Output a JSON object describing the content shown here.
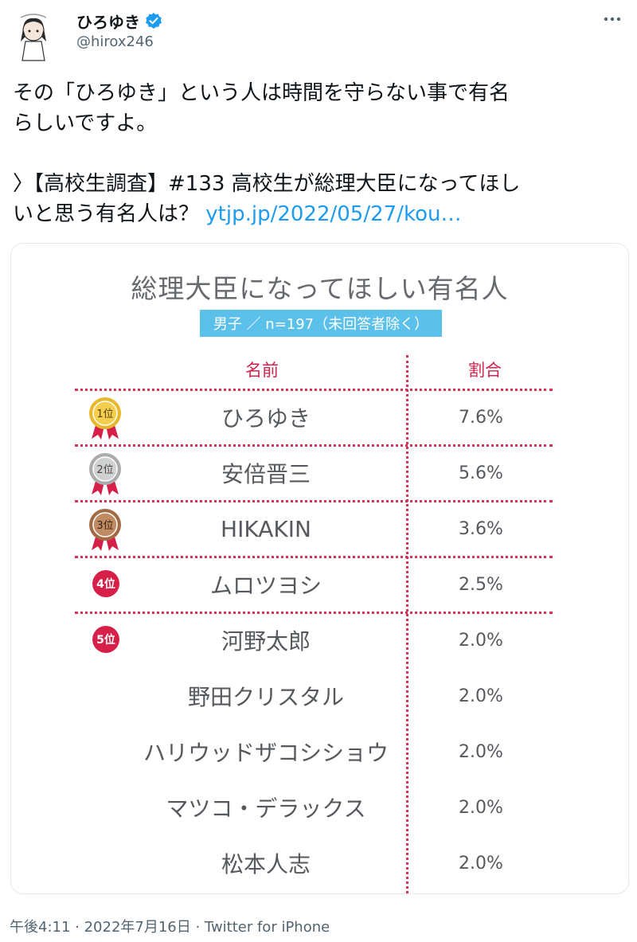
{
  "user": {
    "display_name": "ひろゆき",
    "handle": "@hirox246",
    "avatar_icon": "illustrated-avatar",
    "verified_icon": "verified-badge-icon"
  },
  "tweet": {
    "line1": "その「ひろゆき」という人は時間を守らない事で有名",
    "line2": "らしいですよ。",
    "line3": "〉【高校生調査】#133 高校生が総理大臣になってほし",
    "line4_prefix": "いと思う有名人は？ ",
    "link": "ytjp.jp/2022/05/27/kou…"
  },
  "card": {
    "title": "総理大臣になってほしい有名人",
    "subtitle": "男子 ／ n=197（未回答者除く）",
    "col_name": "名前",
    "col_rate": "割合",
    "rows": [
      {
        "rank_label": "1位",
        "name": "ひろゆき",
        "value": "7.6%"
      },
      {
        "rank_label": "2位",
        "name": "安倍晋三",
        "value": "5.6%"
      },
      {
        "rank_label": "3位",
        "name": "HIKAKIN",
        "value": "3.6%"
      },
      {
        "rank_label": "4位",
        "name": "ムロツヨシ",
        "value": "2.5%"
      },
      {
        "rank_label": "5位",
        "name": "河野太郎",
        "value": "2.0%"
      },
      {
        "rank_label": "",
        "name": "野田クリスタル",
        "value": "2.0%"
      },
      {
        "rank_label": "",
        "name": "ハリウッドザコシショウ",
        "value": "2.0%"
      },
      {
        "rank_label": "",
        "name": "マツコ・デラックス",
        "value": "2.0%"
      },
      {
        "rank_label": "",
        "name": "松本人志",
        "value": "2.0%"
      }
    ]
  },
  "footer": {
    "timestamp": "午後4:11 · 2022年7月16日 · ",
    "via": "Twitter for iPhone"
  },
  "colors": {
    "accent_link": "#1d9bf0",
    "table_red": "#d6204a",
    "band_blue": "#5bc0ea",
    "gold": "#e8b82c",
    "silver": "#a9abad",
    "bronze": "#a36a46"
  }
}
